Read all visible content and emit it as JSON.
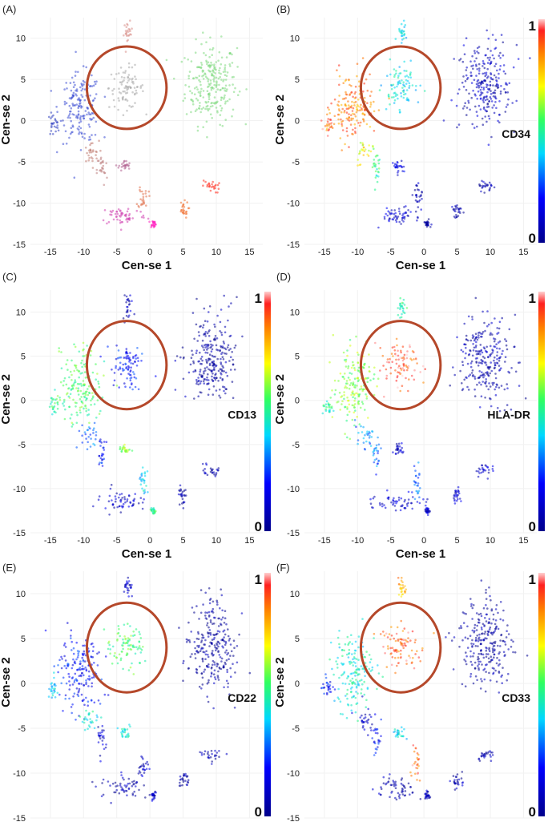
{
  "figure": {
    "panels": [
      {
        "id": "A",
        "label": "(A)",
        "marker": "",
        "colorbar": false,
        "xlabel": "Cen-se 1",
        "ylabel": "Cen-se 2"
      },
      {
        "id": "B",
        "label": "(B)",
        "marker": "CD34",
        "colorbar": true,
        "xlabel": "Cen-se 1",
        "ylabel": "Cen-se 2"
      },
      {
        "id": "C",
        "label": "(C)",
        "marker": "CD13",
        "colorbar": true,
        "xlabel": "Cen-se 1",
        "ylabel": "Cen-se 2"
      },
      {
        "id": "D",
        "label": "(D)",
        "marker": "HLA-DR",
        "colorbar": true,
        "xlabel": "Cen-se 1",
        "ylabel": "Cen-se 2"
      },
      {
        "id": "E",
        "label": "(E)",
        "marker": "CD22",
        "colorbar": true,
        "xlabel": "",
        "ylabel": "Cen-se 2"
      },
      {
        "id": "F",
        "label": "(F)",
        "marker": "CD33",
        "colorbar": true,
        "xlabel": "",
        "ylabel": "Cen-se 2"
      }
    ],
    "colorbar_labels": {
      "max": "1",
      "min": "0"
    }
  },
  "chart_data": {
    "type": "scatter",
    "x_ticks": [
      "-15",
      "-10",
      "-5",
      "0",
      "5",
      "10",
      "15"
    ],
    "y_ticks": [
      "10",
      "5",
      "0",
      "-5",
      "-10",
      "-15"
    ],
    "xlim": [
      -18,
      17
    ],
    "ylim": [
      -15,
      12.5
    ],
    "highlight_ellipse": {
      "center": [
        -3.5,
        4
      ],
      "rx": 6,
      "ry": 5
    },
    "colorbar_range": [
      0,
      1
    ],
    "colors": {
      "ellipse": "#b5482a",
      "grey_population": "#a8a8a8",
      "green_population": "#7dd87d",
      "blue_population": "#2e3fcf",
      "background": "#ffffff"
    },
    "clusters": [
      {
        "name": "big-right",
        "cx": 9.2,
        "cy": 4.5,
        "sx": 3.5,
        "sy": 4.5
      },
      {
        "name": "top-small",
        "cx": -3.3,
        "cy": 10.6,
        "sx": 0.6,
        "sy": 1.2
      },
      {
        "name": "center-ellipse",
        "cx": -3.5,
        "cy": 4,
        "sx": 2.4,
        "sy": 2.3
      },
      {
        "name": "left-arc",
        "cx": -10.5,
        "cy": 1.5,
        "sx": 2.8,
        "sy": 3.8
      },
      {
        "name": "left-small",
        "cx": -14.5,
        "cy": -0.5,
        "sx": 0.8,
        "sy": 1.2
      },
      {
        "name": "mid-left",
        "cx": -9,
        "cy": -4,
        "sx": 1.2,
        "sy": 1.4
      },
      {
        "name": "stem-1",
        "cx": -7.2,
        "cy": -6,
        "sx": 0.7,
        "sy": 1.8
      },
      {
        "name": "bottom-arc",
        "cx": -4,
        "cy": -11.5,
        "sx": 3.2,
        "sy": 1.1
      },
      {
        "name": "mid-center",
        "cx": -3.8,
        "cy": -5.5,
        "sx": 0.8,
        "sy": 0.6
      },
      {
        "name": "center-small",
        "cx": -1,
        "cy": -9.2,
        "sx": 0.7,
        "sy": 1.4
      },
      {
        "name": "bottom-dot",
        "cx": 0.5,
        "cy": -12.5,
        "sx": 0.4,
        "sy": 0.4
      },
      {
        "name": "right-small",
        "cx": 5,
        "cy": -10.8,
        "sx": 0.7,
        "sy": 0.9
      },
      {
        "name": "right-bottom",
        "cx": 9.2,
        "cy": -8,
        "sx": 1.2,
        "sy": 0.7
      }
    ],
    "panel_colors": {
      "A": {
        "big-right": "#7dd87d",
        "top-small": "#d9908a",
        "center-ellipse": "#a8a8a8",
        "left-arc": "#3b4cd3",
        "left-small": "#3040c0",
        "mid-left": "#c07a70",
        "stem-1": "#bd8080",
        "bottom-arc": "#d040b0",
        "mid-center": "#b06090",
        "center-small": "#e0704a",
        "bottom-dot": "#ff20c0",
        "right-small": "#f07030",
        "right-bottom": "#ff3020"
      },
      "B": {
        "big-right": 0.08,
        "top-small": 0.4,
        "center-ellipse": 0.42,
        "left-arc": 0.85,
        "left-small": 0.9,
        "mid-left": 0.7,
        "stem-1": 0.5,
        "bottom-arc": 0.12,
        "mid-center": 0.15,
        "center-small": 0.05,
        "bottom-dot": 0.05,
        "right-small": 0.05,
        "right-bottom": 0.05
      },
      "C": {
        "big-right": 0.02,
        "top-small": 0.1,
        "center-ellipse": 0.2,
        "left-arc": 0.55,
        "left-small": 0.5,
        "mid-left": 0.3,
        "stem-1": 0.2,
        "bottom-arc": 0.1,
        "mid-center": 0.6,
        "center-small": 0.4,
        "bottom-dot": 0.5,
        "right-small": 0.05,
        "right-bottom": 0.05
      },
      "D": {
        "big-right": 0.05,
        "top-small": 0.5,
        "center-ellipse": 0.92,
        "left-arc": 0.6,
        "left-small": 0.5,
        "mid-left": 0.3,
        "stem-1": 0.3,
        "bottom-arc": 0.12,
        "mid-center": 0.1,
        "center-small": 0.3,
        "bottom-dot": 0.1,
        "right-small": 0.1,
        "right-bottom": 0.1
      },
      "E": {
        "big-right": 0.02,
        "top-small": 0.1,
        "center-ellipse": 0.55,
        "left-arc": 0.2,
        "left-small": 0.4,
        "mid-left": 0.45,
        "stem-1": 0.1,
        "bottom-arc": 0.05,
        "mid-center": 0.45,
        "center-small": 0.1,
        "bottom-dot": 0.1,
        "right-small": 0.05,
        "right-bottom": 0.05
      },
      "F": {
        "big-right": 0.03,
        "top-small": 0.8,
        "center-ellipse": 0.9,
        "left-arc": 0.45,
        "left-small": 0.2,
        "mid-left": 0.1,
        "stem-1": 0.2,
        "bottom-arc": 0.05,
        "mid-center": 0.4,
        "center-small": 0.9,
        "bottom-dot": 0.1,
        "right-small": 0.05,
        "right-bottom": 0.05
      }
    }
  }
}
